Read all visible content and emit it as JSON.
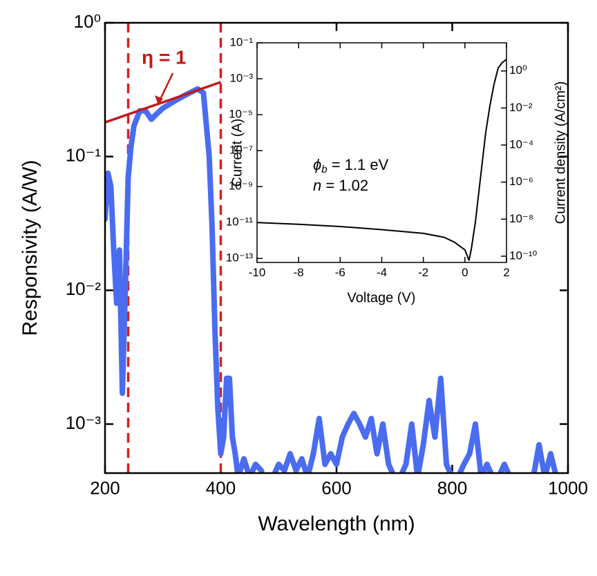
{
  "chart_data": [
    {
      "type": "line",
      "xlabel": "Wavelength (nm)",
      "ylabel": "Responsivity (A/W)",
      "log_y": true,
      "xlim": [
        200,
        1000
      ],
      "ylim": [
        0.00043,
        1
      ],
      "xticks": [
        200,
        400,
        600,
        800,
        1000
      ],
      "yticks": [
        {
          "value": 1,
          "label": "10⁰"
        },
        {
          "value": 0.1,
          "label": "10⁻¹"
        },
        {
          "value": 0.01,
          "label": "10⁻²"
        },
        {
          "value": 0.001,
          "label": "10⁻³"
        }
      ],
      "x": [
        200,
        205,
        210,
        215,
        220,
        225,
        230,
        235,
        240,
        245,
        250,
        260,
        270,
        280,
        290,
        300,
        320,
        340,
        360,
        370,
        380,
        385,
        390,
        395,
        400,
        405,
        410,
        415,
        420,
        425,
        430,
        440,
        450,
        460,
        470,
        480,
        490,
        500,
        510,
        520,
        530,
        540,
        550,
        560,
        570,
        580,
        590,
        600,
        610,
        620,
        630,
        640,
        650,
        660,
        670,
        680,
        690,
        700,
        710,
        720,
        730,
        740,
        750,
        760,
        770,
        780,
        790,
        800,
        810,
        820,
        830,
        840,
        850,
        860,
        870,
        880,
        890,
        900,
        920,
        940,
        950,
        960,
        970,
        980
      ],
      "series": [
        {
          "color": "#4a6cf0",
          "values": [
            0.034,
            0.075,
            0.06,
            0.02,
            0.008,
            0.02,
            0.0017,
            0.01,
            0.07,
            0.12,
            0.17,
            0.22,
            0.22,
            0.19,
            0.21,
            0.23,
            0.26,
            0.29,
            0.32,
            0.3,
            0.1,
            0.03,
            0.005,
            0.0013,
            0.0006,
            0.0008,
            0.0022,
            0.0022,
            0.0008,
            0.0006,
            0.0004,
            0.00055,
            0.0004,
            0.0005,
            0.00045,
            0.0003,
            0.0004,
            0.0005,
            0.00045,
            0.0006,
            0.00045,
            0.00055,
            0.0004,
            0.0006,
            0.0011,
            0.0005,
            0.0006,
            0.0005,
            0.0008,
            0.001,
            0.0012,
            0.001,
            0.0008,
            0.0011,
            0.0006,
            0.001,
            0.0005,
            0.0004,
            0.0004,
            0.0005,
            0.001,
            0.0004,
            0.0007,
            0.0015,
            0.0008,
            0.0022,
            0.0005,
            0.0004,
            0.0004,
            0.0005,
            0.0006,
            0.001,
            0.0004,
            0.0005,
            0.0004,
            0.0004,
            0.0005,
            0.0004,
            0.0003,
            0.0004,
            0.0007,
            0.0004,
            0.0006,
            0.0004
          ]
        }
      ],
      "vlines": [
        240,
        400
      ],
      "vline_color": "#d42020",
      "fit_line": {
        "x": [
          200,
          400
        ],
        "values": [
          0.18,
          0.36
        ],
        "color": "#c41818"
      },
      "annotation": "η = 1"
    },
    {
      "type": "line",
      "xlabel": "Voltage (V)",
      "ylabel": "Current (A)",
      "y2label": "Current density (A/cm²)",
      "log_y": true,
      "xlim": [
        -10,
        2
      ],
      "ylim": [
        6e-14,
        0.1
      ],
      "y2lim": [
        4.6e-11,
        33
      ],
      "xticks": [
        -10,
        -8,
        -6,
        -4,
        -2,
        0,
        2
      ],
      "yticks": [
        {
          "value": 0.1,
          "label": "10⁻¹"
        },
        {
          "value": 0.001,
          "label": "10⁻³"
        },
        {
          "value": 1e-05,
          "label": "10⁻⁵"
        },
        {
          "value": 1e-07,
          "label": "10⁻⁷"
        },
        {
          "value": 1e-09,
          "label": "10⁻⁹"
        },
        {
          "value": 1e-11,
          "label": "10⁻¹¹"
        },
        {
          "value": 1e-13,
          "label": "10⁻¹³"
        }
      ],
      "y2ticks": [
        {
          "value": 1,
          "label": "10⁰"
        },
        {
          "value": 0.01,
          "label": "10⁻²"
        },
        {
          "value": 0.0001,
          "label": "10⁻⁴"
        },
        {
          "value": 1e-06,
          "label": "10⁻⁶"
        },
        {
          "value": 1e-08,
          "label": "10⁻⁸"
        },
        {
          "value": 1e-10,
          "label": "10⁻¹⁰"
        }
      ],
      "x": [
        -10,
        -8,
        -6,
        -4,
        -2,
        -1,
        -0.5,
        0,
        0.2,
        0.3,
        0.5,
        0.8,
        1.0,
        1.2,
        1.4,
        1.6,
        1.8,
        2.0
      ],
      "series": [
        {
          "color": "#000000",
          "values": [
            1e-11,
            8e-12,
            6e-12,
            4e-12,
            2.5e-12,
            1.5e-12,
            8e-13,
            3e-13,
            8e-14,
            3e-13,
            1e-11,
            1e-08,
            1e-06,
            3e-05,
            0.0005,
            0.004,
            0.008,
            0.012
          ]
        }
      ],
      "phi_symbol": "ϕ",
      "phi_sub": "b",
      "phi_text": " = 1.1 eV",
      "n_symbol": "n",
      "n_text": " = 1.02"
    }
  ]
}
